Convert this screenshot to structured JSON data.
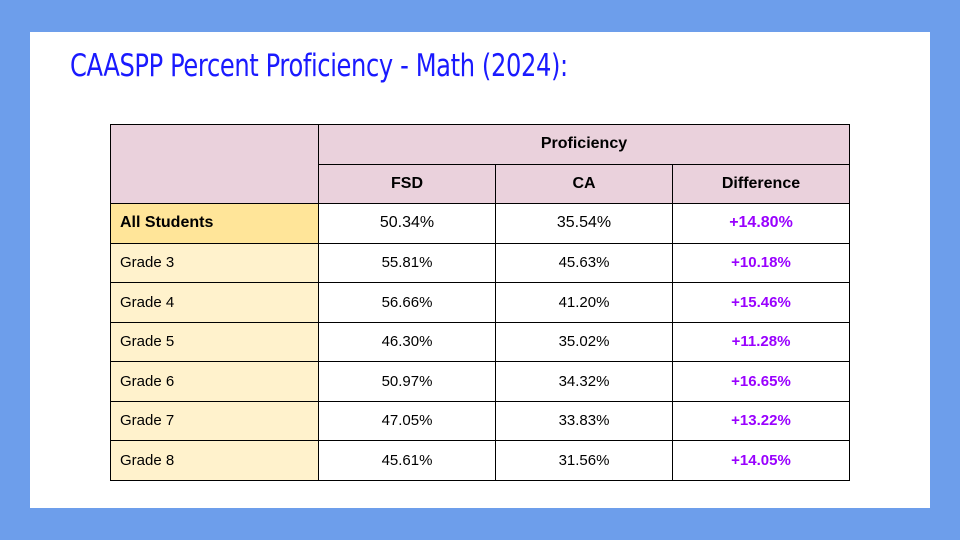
{
  "title": "CAASPP Percent Proficiency - Math (2024):",
  "table": {
    "group_header": "Proficiency",
    "columns": [
      "FSD",
      "CA",
      "Difference"
    ],
    "rows": [
      {
        "label": "All Students",
        "fsd": "50.34%",
        "ca": "35.54%",
        "diff": "+14.80%"
      },
      {
        "label": "Grade 3",
        "fsd": "55.81%",
        "ca": "45.63%",
        "diff": "+10.18%"
      },
      {
        "label": "Grade 4",
        "fsd": "56.66%",
        "ca": "41.20%",
        "diff": "+15.46%"
      },
      {
        "label": "Grade 5",
        "fsd": "46.30%",
        "ca": "35.02%",
        "diff": "+11.28%"
      },
      {
        "label": "Grade 6",
        "fsd": "50.97%",
        "ca": "34.32%",
        "diff": "+16.65%"
      },
      {
        "label": "Grade 7",
        "fsd": "47.05%",
        "ca": "33.83%",
        "diff": "+13.22%"
      },
      {
        "label": "Grade 8",
        "fsd": "45.61%",
        "ca": "31.56%",
        "diff": "+14.05%"
      }
    ]
  },
  "colors": {
    "background": "#6d9eeb",
    "title": "#1a1aff",
    "header_fill": "#ead1dc",
    "all_students_fill": "#ffe599",
    "grade_fill": "#fff2cc",
    "difference_text": "#9900ff"
  }
}
